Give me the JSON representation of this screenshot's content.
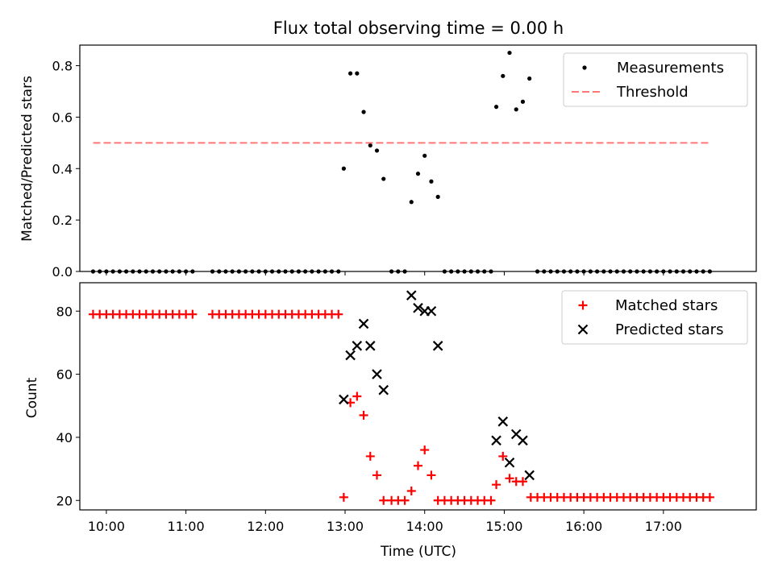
{
  "chart_data": [
    {
      "type": "scatter",
      "title": "Flux total observing time = 0.00 h",
      "xlabel": "",
      "ylabel": "Matched/Predicted stars",
      "xlim": [
        "09:40",
        "18:10"
      ],
      "ylim": [
        0,
        0.88
      ],
      "xticks": [
        "10:00",
        "11:00",
        "12:00",
        "13:00",
        "14:00",
        "15:00",
        "16:00",
        "17:00"
      ],
      "yticks": [
        "0.0",
        "0.2",
        "0.4",
        "0.6",
        "0.8"
      ],
      "legend": {
        "position": "top-right",
        "entries": [
          "Measurements",
          "Threshold"
        ]
      },
      "series": [
        {
          "name": "Measurements",
          "marker": "dot",
          "color": "#000000",
          "points": [
            [
              "09:50",
              0
            ],
            [
              "09:55",
              0
            ],
            [
              "10:00",
              0
            ],
            [
              "10:05",
              0
            ],
            [
              "10:10",
              0
            ],
            [
              "10:15",
              0
            ],
            [
              "10:20",
              0
            ],
            [
              "10:25",
              0
            ],
            [
              "10:30",
              0
            ],
            [
              "10:35",
              0
            ],
            [
              "10:40",
              0
            ],
            [
              "10:45",
              0
            ],
            [
              "10:50",
              0
            ],
            [
              "10:55",
              0
            ],
            [
              "11:00",
              0
            ],
            [
              "11:05",
              0
            ],
            [
              "11:20",
              0
            ],
            [
              "11:25",
              0
            ],
            [
              "11:30",
              0
            ],
            [
              "11:35",
              0
            ],
            [
              "11:40",
              0
            ],
            [
              "11:45",
              0
            ],
            [
              "11:50",
              0
            ],
            [
              "11:55",
              0
            ],
            [
              "12:00",
              0
            ],
            [
              "12:05",
              0
            ],
            [
              "12:10",
              0
            ],
            [
              "12:15",
              0
            ],
            [
              "12:20",
              0
            ],
            [
              "12:25",
              0
            ],
            [
              "12:30",
              0
            ],
            [
              "12:35",
              0
            ],
            [
              "12:40",
              0
            ],
            [
              "12:45",
              0
            ],
            [
              "12:50",
              0
            ],
            [
              "12:55",
              0
            ],
            [
              "12:59",
              0.4
            ],
            [
              "13:04",
              0.77
            ],
            [
              "13:09",
              0.77
            ],
            [
              "13:14",
              0.62
            ],
            [
              "13:19",
              0.49
            ],
            [
              "13:24",
              0.47
            ],
            [
              "13:29",
              0.36
            ],
            [
              "13:35",
              0
            ],
            [
              "13:40",
              0
            ],
            [
              "13:45",
              0
            ],
            [
              "13:50",
              0.27
            ],
            [
              "13:55",
              0.38
            ],
            [
              "14:00",
              0.45
            ],
            [
              "14:05",
              0.35
            ],
            [
              "14:10",
              0.29
            ],
            [
              "14:15",
              0
            ],
            [
              "14:20",
              0
            ],
            [
              "14:25",
              0
            ],
            [
              "14:30",
              0
            ],
            [
              "14:35",
              0
            ],
            [
              "14:40",
              0
            ],
            [
              "14:45",
              0
            ],
            [
              "14:50",
              0
            ],
            [
              "14:54",
              0.64
            ],
            [
              "14:59",
              0.76
            ],
            [
              "15:04",
              0.85
            ],
            [
              "15:09",
              0.63
            ],
            [
              "15:14",
              0.66
            ],
            [
              "15:19",
              0.75
            ],
            [
              "15:25",
              0
            ],
            [
              "15:30",
              0
            ],
            [
              "15:35",
              0
            ],
            [
              "15:40",
              0
            ],
            [
              "15:45",
              0
            ],
            [
              "15:50",
              0
            ],
            [
              "15:55",
              0
            ],
            [
              "16:00",
              0
            ],
            [
              "16:05",
              0
            ],
            [
              "16:10",
              0
            ],
            [
              "16:15",
              0
            ],
            [
              "16:20",
              0
            ],
            [
              "16:25",
              0
            ],
            [
              "16:30",
              0
            ],
            [
              "16:35",
              0
            ],
            [
              "16:40",
              0
            ],
            [
              "16:45",
              0
            ],
            [
              "16:50",
              0
            ],
            [
              "16:55",
              0
            ],
            [
              "17:00",
              0
            ],
            [
              "17:05",
              0
            ],
            [
              "17:10",
              0
            ],
            [
              "17:15",
              0
            ],
            [
              "17:20",
              0
            ],
            [
              "17:25",
              0
            ],
            [
              "17:30",
              0
            ],
            [
              "17:35",
              0
            ]
          ]
        },
        {
          "name": "Threshold",
          "marker": "dashed-line",
          "color": "#ff7777",
          "points": [
            [
              "09:50",
              0.5
            ],
            [
              "17:35",
              0.5
            ]
          ]
        }
      ]
    },
    {
      "type": "scatter",
      "title": "",
      "xlabel": "Time (UTC)",
      "ylabel": "Count",
      "xlim": [
        "09:40",
        "18:10"
      ],
      "ylim": [
        17,
        89
      ],
      "xticks": [
        "10:00",
        "11:00",
        "12:00",
        "13:00",
        "14:00",
        "15:00",
        "16:00",
        "17:00"
      ],
      "yticks": [
        "20",
        "40",
        "60",
        "80"
      ],
      "legend": {
        "position": "top-right",
        "entries": [
          "Matched stars",
          "Predicted stars"
        ]
      },
      "series": [
        {
          "name": "Matched stars",
          "marker": "plus",
          "color": "#ff0000",
          "points": [
            [
              "09:50",
              79
            ],
            [
              "09:55",
              79
            ],
            [
              "10:00",
              79
            ],
            [
              "10:05",
              79
            ],
            [
              "10:10",
              79
            ],
            [
              "10:15",
              79
            ],
            [
              "10:20",
              79
            ],
            [
              "10:25",
              79
            ],
            [
              "10:30",
              79
            ],
            [
              "10:35",
              79
            ],
            [
              "10:40",
              79
            ],
            [
              "10:45",
              79
            ],
            [
              "10:50",
              79
            ],
            [
              "10:55",
              79
            ],
            [
              "11:00",
              79
            ],
            [
              "11:05",
              79
            ],
            [
              "11:20",
              79
            ],
            [
              "11:25",
              79
            ],
            [
              "11:30",
              79
            ],
            [
              "11:35",
              79
            ],
            [
              "11:40",
              79
            ],
            [
              "11:45",
              79
            ],
            [
              "11:50",
              79
            ],
            [
              "11:55",
              79
            ],
            [
              "12:00",
              79
            ],
            [
              "12:05",
              79
            ],
            [
              "12:10",
              79
            ],
            [
              "12:15",
              79
            ],
            [
              "12:20",
              79
            ],
            [
              "12:25",
              79
            ],
            [
              "12:30",
              79
            ],
            [
              "12:35",
              79
            ],
            [
              "12:40",
              79
            ],
            [
              "12:45",
              79
            ],
            [
              "12:50",
              79
            ],
            [
              "12:55",
              79
            ],
            [
              "12:59",
              21
            ],
            [
              "13:04",
              51
            ],
            [
              "13:09",
              53
            ],
            [
              "13:14",
              47
            ],
            [
              "13:19",
              34
            ],
            [
              "13:24",
              28
            ],
            [
              "13:29",
              20
            ],
            [
              "13:35",
              20
            ],
            [
              "13:40",
              20
            ],
            [
              "13:45",
              20
            ],
            [
              "13:50",
              23
            ],
            [
              "13:55",
              31
            ],
            [
              "14:00",
              36
            ],
            [
              "14:05",
              28
            ],
            [
              "14:10",
              20
            ],
            [
              "14:15",
              20
            ],
            [
              "14:20",
              20
            ],
            [
              "14:25",
              20
            ],
            [
              "14:30",
              20
            ],
            [
              "14:35",
              20
            ],
            [
              "14:40",
              20
            ],
            [
              "14:45",
              20
            ],
            [
              "14:50",
              20
            ],
            [
              "14:54",
              25
            ],
            [
              "14:59",
              34
            ],
            [
              "15:04",
              27
            ],
            [
              "15:09",
              26
            ],
            [
              "15:14",
              26
            ],
            [
              "15:20",
              21
            ],
            [
              "15:25",
              21
            ],
            [
              "15:30",
              21
            ],
            [
              "15:35",
              21
            ],
            [
              "15:40",
              21
            ],
            [
              "15:45",
              21
            ],
            [
              "15:50",
              21
            ],
            [
              "15:55",
              21
            ],
            [
              "16:00",
              21
            ],
            [
              "16:05",
              21
            ],
            [
              "16:10",
              21
            ],
            [
              "16:15",
              21
            ],
            [
              "16:20",
              21
            ],
            [
              "16:25",
              21
            ],
            [
              "16:30",
              21
            ],
            [
              "16:35",
              21
            ],
            [
              "16:40",
              21
            ],
            [
              "16:45",
              21
            ],
            [
              "16:50",
              21
            ],
            [
              "16:55",
              21
            ],
            [
              "17:00",
              21
            ],
            [
              "17:05",
              21
            ],
            [
              "17:10",
              21
            ],
            [
              "17:15",
              21
            ],
            [
              "17:20",
              21
            ],
            [
              "17:25",
              21
            ],
            [
              "17:30",
              21
            ],
            [
              "17:35",
              21
            ]
          ]
        },
        {
          "name": "Predicted stars",
          "marker": "x",
          "color": "#000000",
          "points": [
            [
              "12:59",
              52
            ],
            [
              "13:04",
              66
            ],
            [
              "13:09",
              69
            ],
            [
              "13:14",
              76
            ],
            [
              "13:19",
              69
            ],
            [
              "13:24",
              60
            ],
            [
              "13:29",
              55
            ],
            [
              "13:50",
              85
            ],
            [
              "13:55",
              81
            ],
            [
              "14:00",
              80
            ],
            [
              "14:05",
              80
            ],
            [
              "14:10",
              69
            ],
            [
              "14:54",
              39
            ],
            [
              "14:59",
              45
            ],
            [
              "15:04",
              32
            ],
            [
              "15:09",
              41
            ],
            [
              "15:14",
              39
            ],
            [
              "15:19",
              28
            ]
          ]
        }
      ]
    }
  ]
}
